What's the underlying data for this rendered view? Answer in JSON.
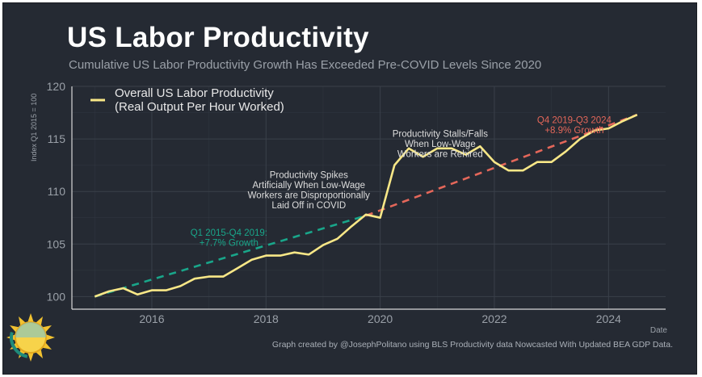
{
  "header": {
    "title": "US Labor Productivity",
    "subtitle": "Cumulative US Labor Productivity Growth Has Exceeded Pre-COVID Levels Since 2020"
  },
  "footer": {
    "credit": "Graph created by @JosephPolitano using BLS Productivity data Nowcasted With Updated BEA GDP Data."
  },
  "colors": {
    "background": "#252a33",
    "series": "#f8e787",
    "pre_trend": "#19a68a",
    "post_trend": "#e4675a",
    "grid": "#3a404a",
    "axis_text": "#9aa0a8",
    "annotation": "#dddddd"
  },
  "chart_data": {
    "type": "line",
    "title": "US Labor Productivity",
    "subtitle": "Cumulative US Labor Productivity Growth Has Exceeded Pre-COVID Levels Since 2020",
    "xlabel": "Date",
    "ylabel": "Index Q1 2015 = 100",
    "xlim": [
      2014.6,
      2025.0
    ],
    "ylim": [
      98.8,
      120
    ],
    "x_ticks": [
      2016,
      2018,
      2020,
      2022,
      2024
    ],
    "x_tick_labels": [
      "2016",
      "2018",
      "2020",
      "2022",
      "2024"
    ],
    "y_ticks": [
      100,
      105,
      110,
      115,
      120
    ],
    "y_tick_labels": [
      "100",
      "105",
      "110",
      "115",
      "120"
    ],
    "grid": true,
    "legend": {
      "position": "top-left",
      "label_line1": "Overall US Labor Productivity",
      "label_line2": "(Real Output Per Hour Worked)"
    },
    "series": [
      {
        "name": "Overall US Labor Productivity (Real Output Per Hour Worked)",
        "x": [
          2015.0,
          2015.25,
          2015.5,
          2015.75,
          2016.0,
          2016.25,
          2016.5,
          2016.75,
          2017.0,
          2017.25,
          2017.5,
          2017.75,
          2018.0,
          2018.25,
          2018.5,
          2018.75,
          2019.0,
          2019.25,
          2019.5,
          2019.75,
          2020.0,
          2020.25,
          2020.5,
          2020.75,
          2021.0,
          2021.25,
          2021.5,
          2021.75,
          2022.0,
          2022.25,
          2022.5,
          2022.75,
          2023.0,
          2023.25,
          2023.5,
          2023.75,
          2024.0,
          2024.25,
          2024.5
        ],
        "values": [
          100.0,
          100.5,
          100.8,
          100.2,
          100.6,
          100.6,
          101.0,
          101.7,
          101.9,
          101.9,
          102.7,
          103.5,
          103.9,
          103.9,
          104.2,
          104.0,
          104.9,
          105.5,
          106.7,
          107.8,
          107.5,
          112.5,
          114.1,
          113.3,
          114.1,
          114.1,
          113.5,
          114.3,
          112.8,
          112.0,
          112.0,
          112.8,
          112.8,
          113.8,
          115.0,
          115.8,
          116.0,
          116.7,
          117.3
        ]
      },
      {
        "name": "Q1 2015-Q4 2019 trend",
        "x": [
          2015.0,
          2019.75
        ],
        "values": [
          100.0,
          107.7
        ]
      },
      {
        "name": "Q4 2019-Q3 2024 trend",
        "x": [
          2019.75,
          2024.5
        ],
        "values": [
          107.7,
          117.3
        ]
      }
    ],
    "annotations": [
      {
        "lines": [
          "Q1 2015-Q4 2019:",
          "+7.7% Growth"
        ],
        "x": 2017.35,
        "y": 105.8,
        "color": "#19a68a"
      },
      {
        "lines": [
          "Productivity Spikes",
          "Artificially When Low-Wage",
          "Workers are Disproportionally",
          "Laid Off in COVID"
        ],
        "x": 2018.75,
        "y": 111.3,
        "color": "#dddddd"
      },
      {
        "lines": [
          "Productivity Stalls/Falls",
          "When Low-Wage",
          "Workers are Rehired"
        ],
        "x": 2021.05,
        "y": 115.2,
        "color": "#dddddd"
      },
      {
        "lines": [
          "Q4 2019-Q3 2024",
          "+8.9% Growth"
        ],
        "x": 2023.4,
        "y": 116.5,
        "color": "#e4675a"
      }
    ]
  }
}
